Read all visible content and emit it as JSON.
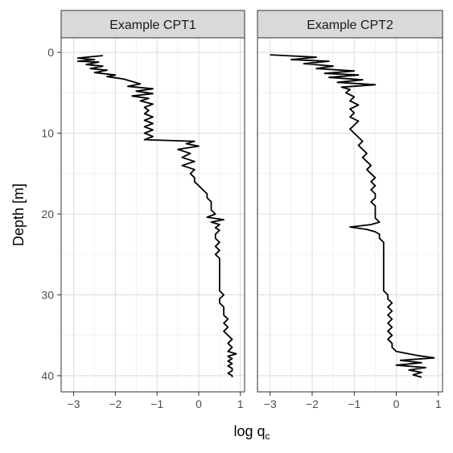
{
  "chart_data": {
    "type": "line",
    "xlabel": "log q",
    "xlabel_sub": "c",
    "ylabel": "Depth [m]",
    "xlim": [
      -3.3,
      1.1
    ],
    "ylim": [
      -1.8,
      42
    ],
    "y_reversed": true,
    "grid": true,
    "x_ticks": [
      -3,
      -2,
      -1,
      0,
      1
    ],
    "y_ticks": [
      0,
      10,
      20,
      30,
      40
    ],
    "x_tick_labels": [
      "−3",
      "−2",
      "−1",
      "0",
      "1"
    ],
    "y_tick_labels": [
      "0",
      "10",
      "20",
      "30",
      "40"
    ],
    "line_color": "#000000",
    "panels": [
      {
        "title": "Example CPT1",
        "depth": [
          0.4,
          0.7,
          0.9,
          1.1,
          1.2,
          1.5,
          1.7,
          2.0,
          2.2,
          2.5,
          2.8,
          3.0,
          3.3,
          3.6,
          3.9,
          4.2,
          4.5,
          4.8,
          5.1,
          5.4,
          5.7,
          6.0,
          6.4,
          6.8,
          7.2,
          7.6,
          8.0,
          8.4,
          8.8,
          9.2,
          9.6,
          10.0,
          10.4,
          10.8,
          11.0,
          11.3,
          11.6,
          12.0,
          12.5,
          13.0,
          13.5,
          14.0,
          14.5,
          15.0,
          15.5,
          16.0,
          16.5,
          17.0,
          17.5,
          18.0,
          18.5,
          19.0,
          19.5,
          20.0,
          20.4,
          20.7,
          21.0,
          21.3,
          21.7,
          22.0,
          22.5,
          23.0,
          23.5,
          24.0,
          24.5,
          25.0,
          25.5,
          26.0,
          26.5,
          27.0,
          27.5,
          28.0,
          28.5,
          29.0,
          29.5,
          30.0,
          30.5,
          31.0,
          31.5,
          32.0,
          32.5,
          33.0,
          33.5,
          34.0,
          34.5,
          35.0,
          35.5,
          36.0,
          36.5,
          37.0,
          37.3,
          37.6,
          37.9,
          38.2,
          38.5,
          38.8,
          39.1,
          39.4,
          39.7,
          40.0,
          40.2
        ],
        "values": [
          -2.3,
          -2.9,
          -2.5,
          -2.9,
          -2.4,
          -2.7,
          -2.3,
          -2.6,
          -2.2,
          -2.5,
          -2.0,
          -2.2,
          -1.8,
          -1.6,
          -1.4,
          -1.7,
          -1.1,
          -1.5,
          -1.1,
          -1.6,
          -1.2,
          -1.4,
          -1.1,
          -1.3,
          -1.2,
          -1.3,
          -1.1,
          -1.3,
          -1.1,
          -1.3,
          -1.1,
          -1.3,
          -1.1,
          -1.3,
          -0.1,
          -0.3,
          0.0,
          -0.5,
          -0.2,
          -0.4,
          -0.1,
          -0.4,
          -0.1,
          -0.2,
          -0.1,
          -0.1,
          0.0,
          0.1,
          0.2,
          0.2,
          0.3,
          0.3,
          0.3,
          0.4,
          0.2,
          0.6,
          0.3,
          0.5,
          0.4,
          0.5,
          0.4,
          0.4,
          0.5,
          0.4,
          0.5,
          0.4,
          0.5,
          0.5,
          0.5,
          0.5,
          0.5,
          0.5,
          0.5,
          0.5,
          0.5,
          0.6,
          0.5,
          0.5,
          0.6,
          0.6,
          0.6,
          0.7,
          0.6,
          0.7,
          0.6,
          0.7,
          0.8,
          0.7,
          0.8,
          0.7,
          0.9,
          0.7,
          0.8,
          0.7,
          0.8,
          0.7,
          0.8,
          0.8,
          0.7,
          0.8,
          0.8
        ]
      },
      {
        "title": "Example CPT2",
        "depth": [
          0.3,
          0.6,
          0.9,
          1.1,
          1.4,
          1.7,
          2.0,
          2.3,
          2.6,
          2.8,
          3.1,
          3.4,
          3.7,
          4.0,
          4.3,
          4.6,
          5.0,
          5.5,
          6.0,
          6.5,
          7.0,
          7.5,
          8.0,
          8.5,
          9.0,
          9.5,
          10.0,
          10.5,
          11.0,
          11.5,
          12.0,
          12.5,
          13.0,
          13.5,
          14.0,
          14.5,
          15.0,
          15.5,
          16.0,
          16.5,
          17.0,
          17.5,
          18.0,
          18.5,
          19.0,
          19.5,
          20.0,
          20.5,
          21.0,
          21.3,
          21.6,
          21.9,
          22.2,
          22.5,
          23.0,
          23.5,
          24.0,
          24.5,
          25.0,
          25.5,
          26.0,
          26.5,
          27.0,
          27.5,
          28.0,
          28.5,
          29.0,
          29.5,
          30.0,
          30.5,
          31.0,
          31.5,
          32.0,
          32.5,
          33.0,
          33.5,
          34.0,
          34.5,
          35.0,
          35.5,
          36.0,
          36.5,
          37.0,
          37.5,
          37.8,
          38.1,
          38.4,
          38.7,
          39.0,
          39.3,
          39.6,
          39.9,
          40.2
        ],
        "values": [
          -3.0,
          -1.9,
          -2.5,
          -1.6,
          -2.2,
          -1.5,
          -1.9,
          -1.0,
          -1.7,
          -0.9,
          -1.6,
          -0.8,
          -1.4,
          -0.5,
          -1.3,
          -1.1,
          -1.2,
          -1.0,
          -1.1,
          -0.9,
          -1.1,
          -1.0,
          -1.1,
          -0.9,
          -1.0,
          -1.1,
          -1.0,
          -0.9,
          -0.8,
          -0.9,
          -0.8,
          -0.7,
          -0.8,
          -0.7,
          -0.6,
          -0.7,
          -0.6,
          -0.5,
          -0.6,
          -0.5,
          -0.6,
          -0.5,
          -0.5,
          -0.6,
          -0.5,
          -0.5,
          -0.5,
          -0.5,
          -0.4,
          -0.6,
          -1.1,
          -0.7,
          -0.5,
          -0.4,
          -0.4,
          -0.3,
          -0.3,
          -0.3,
          -0.3,
          -0.3,
          -0.3,
          -0.3,
          -0.3,
          -0.3,
          -0.3,
          -0.3,
          -0.3,
          -0.3,
          -0.2,
          -0.2,
          -0.1,
          -0.2,
          -0.1,
          -0.2,
          -0.1,
          -0.2,
          -0.1,
          -0.2,
          -0.1,
          -0.2,
          -0.1,
          -0.1,
          0.0,
          0.5,
          0.9,
          0.1,
          0.6,
          0.0,
          0.7,
          0.3,
          0.6,
          0.4,
          0.6
        ]
      }
    ]
  }
}
